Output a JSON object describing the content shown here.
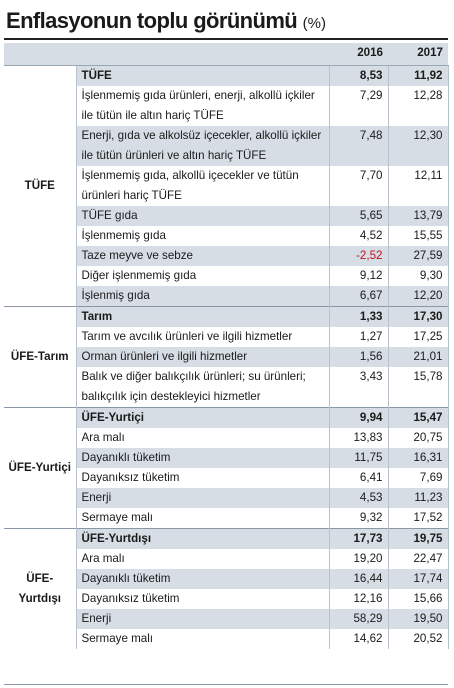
{
  "title": "Enflasyonun toplu görünümü",
  "unit": "(%)",
  "columns": [
    "2016",
    "2017"
  ],
  "groups": [
    {
      "name": "TÜFE",
      "rows": [
        {
          "label": "TÜFE",
          "v2016": "8,53",
          "v2017": "11,92",
          "bold": true
        },
        {
          "label": "İşlenmemiş gıda ürünleri, enerji, alkollü içkiler ile tütün ile altın hariç TÜFE",
          "v2016": "7,29",
          "v2017": "12,28"
        },
        {
          "label": "Enerji, gıda ve alkolsüz içecekler, alkollü içkiler ile tütün ürünleri ve altın hariç TÜFE",
          "v2016": "7,48",
          "v2017": "12,30"
        },
        {
          "label": "İşlenmemiş gıda, alkollü içecekler ve tütün ürünleri hariç TÜFE",
          "v2016": "7,70",
          "v2017": "12,11"
        },
        {
          "label": "TÜFE gıda",
          "v2016": "5,65",
          "v2017": "13,79"
        },
        {
          "label": "İşlenmemiş gıda",
          "v2016": "4,52",
          "v2017": "15,55"
        },
        {
          "label": "Taze meyve ve sebze",
          "v2016": "-2,52",
          "v2017": "27,59",
          "negative": true
        },
        {
          "label": "Diğer işlenmemiş gıda",
          "v2016": "9,12",
          "v2017": "9,30"
        },
        {
          "label": "İşlenmiş gıda",
          "v2016": "6,67",
          "v2017": "12,20"
        }
      ]
    },
    {
      "name": "ÜFE-Tarım",
      "rows": [
        {
          "label": "Tarım",
          "v2016": "1,33",
          "v2017": "17,30",
          "bold": true
        },
        {
          "label": "Tarım ve avcılık ürünleri ve ilgili hizmetler",
          "v2016": "1,27",
          "v2017": "17,25"
        },
        {
          "label": "Orman ürünleri ve ilgili hizmetler",
          "v2016": "1,56",
          "v2017": "21,01"
        },
        {
          "label": "Balık ve diğer balıkçılık ürünleri; su ürünleri; balıkçılık için destekleyici hizmetler",
          "v2016": "3,43",
          "v2017": "15,78"
        }
      ]
    },
    {
      "name": "ÜFE-Yurtiçi",
      "rows": [
        {
          "label": "ÜFE-Yurtiçi",
          "v2016": "9,94",
          "v2017": "15,47",
          "bold": true
        },
        {
          "label": "Ara malı",
          "v2016": "13,83",
          "v2017": "20,75"
        },
        {
          "label": "Dayanıklı tüketim",
          "v2016": "11,75",
          "v2017": "16,31"
        },
        {
          "label": "Dayanıksız tüketim",
          "v2016": "6,41",
          "v2017": "7,69"
        },
        {
          "label": "Enerji",
          "v2016": "4,53",
          "v2017": "11,23"
        },
        {
          "label": "Sermaye malı",
          "v2016": "9,32",
          "v2017": "17,52"
        }
      ]
    },
    {
      "name": "ÜFE-Yurtdışı",
      "rows": [
        {
          "label": "ÜFE-Yurtdışı",
          "v2016": "17,73",
          "v2017": "19,75",
          "bold": true
        },
        {
          "label": "Ara malı",
          "v2016": "19,20",
          "v2017": "22,47"
        },
        {
          "label": "Dayanıklı tüketim",
          "v2016": "16,44",
          "v2017": "17,74"
        },
        {
          "label": "Dayanıksız tüketim",
          "v2016": "12,16",
          "v2017": "15,66"
        },
        {
          "label": "Enerji",
          "v2016": "58,29",
          "v2017": "19,50"
        },
        {
          "label": "Sermaye malı",
          "v2016": "14,62",
          "v2017": "20,52"
        }
      ]
    }
  ],
  "colors": {
    "stripe": "#d6dde5",
    "negative": "#c0141c",
    "rule": "#222222"
  }
}
